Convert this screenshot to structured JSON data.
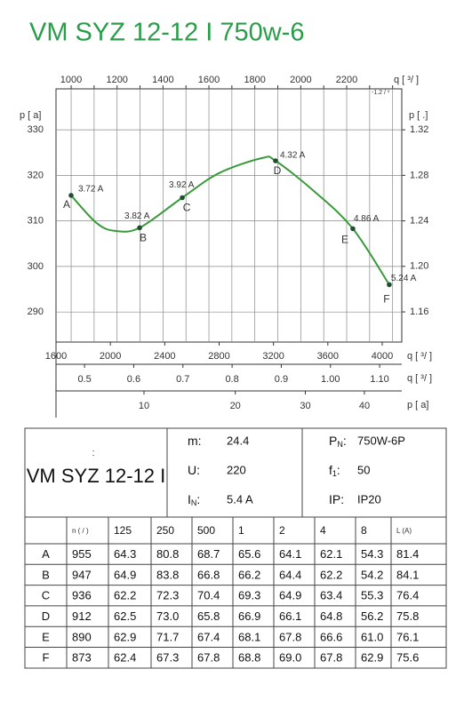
{
  "title": "VM SYZ 12-12 I 750w-6",
  "chart_data": {
    "type": "line",
    "x": [
      1711,
      1900,
      2038,
      2215,
      2529,
      2800,
      3117,
      3215,
      3500,
      3784,
      4052
    ],
    "values": [
      315.6,
      309.5,
      307.8,
      308.5,
      315.1,
      320.5,
      323.8,
      323.2,
      316.5,
      308.3,
      296.0
    ],
    "color": "#3a9a3a",
    "points": [
      {
        "label": "A",
        "x": 1711,
        "y": 315.6,
        "current": "3.72 A"
      },
      {
        "label": "B",
        "x": 2215,
        "y": 308.5,
        "current": "3.82 A"
      },
      {
        "label": "C",
        "x": 2529,
        "y": 315.1,
        "current": "3.92 A"
      },
      {
        "label": "D",
        "x": 3215,
        "y": 323.2,
        "current": "4.32 A"
      },
      {
        "label": "E",
        "x": 3784,
        "y": 308.3,
        "current": "4.86 A"
      },
      {
        "label": "F",
        "x": 4052,
        "y": 296.0,
        "current": "5.24 A"
      }
    ],
    "xlim": [
      1600,
      4144
    ],
    "xticks": [
      1600,
      2000,
      2400,
      2800,
      3200,
      3600,
      4000
    ],
    "xlabel": "q  [  ³/  ]",
    "ylim": [
      283.4,
      339.0
    ],
    "yticks": [
      290,
      300,
      310,
      320,
      330
    ],
    "ylabel": "p  [  a]",
    "grid": true,
    "top_axis": {
      "lim": [
        934,
        2440
      ],
      "ticks": [
        1000,
        1200,
        1400,
        1600,
        1800,
        2000,
        2200
      ],
      "label": "q  [  ³/  ]",
      "note": "-1.2  /  ¹"
    },
    "right_axis": {
      "lim": [
        1.1335,
        1.356
      ],
      "ticks": [
        1.32,
        1.28,
        1.24,
        {
          "value": 1.2,
          "label": "1.20"
        },
        1.16
      ],
      "label": "p  [    .]"
    },
    "bottom_axis2": {
      "lim": [
        0.442,
        1.145
      ],
      "ticks": [
        0.5,
        0.6,
        0.7,
        0.8,
        0.9,
        {
          "value": 1,
          "label": "1.00"
        },
        {
          "value": 1.1,
          "label": "1.10"
        }
      ],
      "label": "q  [  ³/  ]"
    },
    "bottom_axis3": {
      "lim": [
        3.61,
        47.07
      ],
      "scale": "sqrt",
      "ticks": [
        10,
        20,
        30,
        40
      ],
      "label": "p    [  a]"
    }
  },
  "specs": {
    "colon": ":",
    "model": "VM SYZ 12-12 I",
    "items": [
      {
        "label": "m",
        "sub": "",
        "sep": ":",
        "value": "24.4"
      },
      {
        "label": "P",
        "sub": "N",
        "sep": ":",
        "value": "750W-6P"
      },
      {
        "label": "U",
        "sub": "",
        "sep": ":",
        "value": "220"
      },
      {
        "label": "f",
        "sub": "1",
        "sep": ":",
        "value": "50"
      },
      {
        "label": "I",
        "sub": "N",
        "sep": ":",
        "value": "5.4  A"
      },
      {
        "label": "IP",
        "sub": "",
        "sep": ":",
        "value": "IP20"
      }
    ]
  },
  "table": {
    "header": [
      "n (  /  )",
      "125",
      "250",
      "500",
      "1",
      "2",
      "4",
      "8",
      "L   (A)"
    ],
    "rows": [
      [
        "A",
        "955",
        "64.3",
        "80.8",
        "68.7",
        "65.6",
        "64.1",
        "62.1",
        "54.3",
        "81.4"
      ],
      [
        "B",
        "947",
        "64.9",
        "83.8",
        "66.8",
        "66.2",
        "64.4",
        "62.2",
        "54.2",
        "84.1"
      ],
      [
        "C",
        "936",
        "62.2",
        "72.3",
        "70.4",
        "69.3",
        "64.9",
        "63.4",
        "55.3",
        "76.4"
      ],
      [
        "D",
        "912",
        "62.5",
        "73.0",
        "65.8",
        "66.9",
        "66.1",
        "64.8",
        "56.2",
        "75.8"
      ],
      [
        "E",
        "890",
        "62.9",
        "71.7",
        "67.4",
        "68.1",
        "67.8",
        "66.6",
        "61.0",
        "76.1"
      ],
      [
        "F",
        "873",
        "62.4",
        "67.3",
        "67.8",
        "68.8",
        "69.0",
        "67.8",
        "62.9",
        "75.6"
      ]
    ]
  }
}
